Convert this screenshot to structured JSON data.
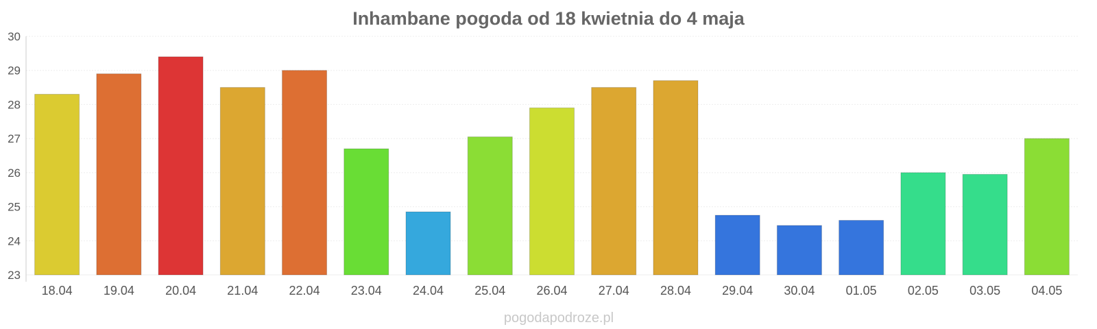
{
  "chart_data": {
    "type": "bar",
    "title": "Inhambane pogoda od 18 kwietnia do 4 maja",
    "xlabel": "",
    "ylabel": "",
    "ylim": [
      23,
      30
    ],
    "yticks": [
      23,
      24,
      25,
      26,
      27,
      28,
      29,
      30
    ],
    "grid": true,
    "categories": [
      "18.04",
      "19.04",
      "20.04",
      "21.04",
      "22.04",
      "23.04",
      "24.04",
      "25.04",
      "26.04",
      "27.04",
      "28.04",
      "29.04",
      "30.04",
      "01.05",
      "02.05",
      "03.05",
      "04.05"
    ],
    "values": [
      28.3,
      28.9,
      29.4,
      28.5,
      29.0,
      26.7,
      24.85,
      27.05,
      27.9,
      28.5,
      28.7,
      24.75,
      24.45,
      24.6,
      26.0,
      25.95,
      27.0
    ],
    "colors": [
      "#dbcb31",
      "#dd6f33",
      "#dd3535",
      "#dca731",
      "#dd6f33",
      "#69dd35",
      "#35a8dd",
      "#8bdd35",
      "#ccdd31",
      "#dca731",
      "#dca731",
      "#3575dd",
      "#3575dd",
      "#3575dd",
      "#35dd8b",
      "#35dd8b",
      "#8bdd35"
    ]
  },
  "watermark": "pogodapodroze.pl"
}
